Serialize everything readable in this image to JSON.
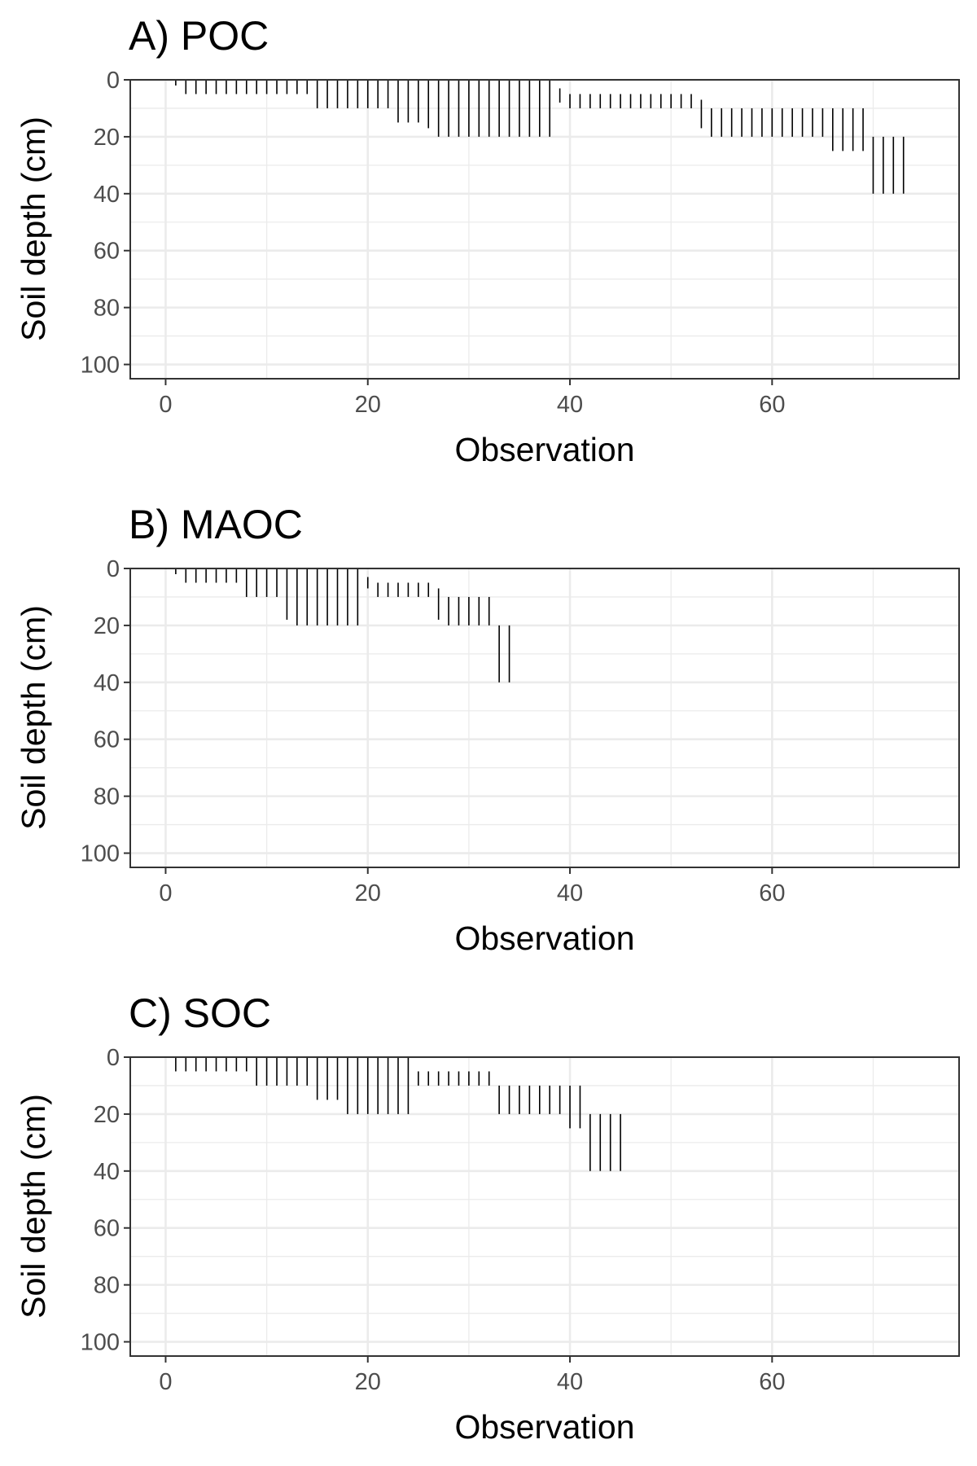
{
  "figure": {
    "panels": [
      {
        "title": "A) POC"
      },
      {
        "title": "B) MAOC"
      },
      {
        "title": "C) SOC"
      }
    ]
  },
  "chart_data": [
    {
      "type": "range-bar",
      "title": "A) POC",
      "xlabel": "Observation",
      "ylabel": "Soil depth (cm)",
      "xlim": [
        -3.5,
        78.5
      ],
      "ylim": [
        0,
        105
      ],
      "y_reversed": true,
      "xticks": [
        0,
        20,
        40,
        60
      ],
      "yticks": [
        0,
        20,
        40,
        60,
        80,
        100
      ],
      "grid": true,
      "observations": [
        {
          "x": 1,
          "top": 0,
          "bottom": 2
        },
        {
          "x": 2,
          "top": 0,
          "bottom": 5
        },
        {
          "x": 3,
          "top": 0,
          "bottom": 5
        },
        {
          "x": 4,
          "top": 0,
          "bottom": 5
        },
        {
          "x": 5,
          "top": 0,
          "bottom": 5
        },
        {
          "x": 6,
          "top": 0,
          "bottom": 5
        },
        {
          "x": 7,
          "top": 0,
          "bottom": 5
        },
        {
          "x": 8,
          "top": 0,
          "bottom": 5
        },
        {
          "x": 9,
          "top": 0,
          "bottom": 5
        },
        {
          "x": 10,
          "top": 0,
          "bottom": 5
        },
        {
          "x": 11,
          "top": 0,
          "bottom": 5
        },
        {
          "x": 12,
          "top": 0,
          "bottom": 5
        },
        {
          "x": 13,
          "top": 0,
          "bottom": 5
        },
        {
          "x": 14,
          "top": 0,
          "bottom": 5
        },
        {
          "x": 15,
          "top": 0,
          "bottom": 10
        },
        {
          "x": 16,
          "top": 0,
          "bottom": 10
        },
        {
          "x": 17,
          "top": 0,
          "bottom": 10
        },
        {
          "x": 18,
          "top": 0,
          "bottom": 10
        },
        {
          "x": 19,
          "top": 0,
          "bottom": 10
        },
        {
          "x": 20,
          "top": 0,
          "bottom": 10
        },
        {
          "x": 21,
          "top": 0,
          "bottom": 10
        },
        {
          "x": 22,
          "top": 0,
          "bottom": 10
        },
        {
          "x": 23,
          "top": 0,
          "bottom": 15
        },
        {
          "x": 24,
          "top": 0,
          "bottom": 15
        },
        {
          "x": 25,
          "top": 0,
          "bottom": 15
        },
        {
          "x": 26,
          "top": 0,
          "bottom": 17
        },
        {
          "x": 27,
          "top": 0,
          "bottom": 20
        },
        {
          "x": 28,
          "top": 0,
          "bottom": 20
        },
        {
          "x": 29,
          "top": 0,
          "bottom": 20
        },
        {
          "x": 30,
          "top": 0,
          "bottom": 20
        },
        {
          "x": 31,
          "top": 0,
          "bottom": 20
        },
        {
          "x": 32,
          "top": 0,
          "bottom": 20
        },
        {
          "x": 33,
          "top": 0,
          "bottom": 20
        },
        {
          "x": 34,
          "top": 0,
          "bottom": 20
        },
        {
          "x": 35,
          "top": 0,
          "bottom": 20
        },
        {
          "x": 36,
          "top": 0,
          "bottom": 20
        },
        {
          "x": 37,
          "top": 0,
          "bottom": 20
        },
        {
          "x": 38,
          "top": 0,
          "bottom": 20
        },
        {
          "x": 39,
          "top": 3,
          "bottom": 8
        },
        {
          "x": 40,
          "top": 5,
          "bottom": 10
        },
        {
          "x": 41,
          "top": 5,
          "bottom": 10
        },
        {
          "x": 42,
          "top": 5,
          "bottom": 10
        },
        {
          "x": 43,
          "top": 5,
          "bottom": 10
        },
        {
          "x": 44,
          "top": 5,
          "bottom": 10
        },
        {
          "x": 45,
          "top": 5,
          "bottom": 10
        },
        {
          "x": 46,
          "top": 5,
          "bottom": 10
        },
        {
          "x": 47,
          "top": 5,
          "bottom": 10
        },
        {
          "x": 48,
          "top": 5,
          "bottom": 10
        },
        {
          "x": 49,
          "top": 5,
          "bottom": 10
        },
        {
          "x": 50,
          "top": 5,
          "bottom": 10
        },
        {
          "x": 51,
          "top": 5,
          "bottom": 10
        },
        {
          "x": 52,
          "top": 5,
          "bottom": 10
        },
        {
          "x": 53,
          "top": 7,
          "bottom": 17
        },
        {
          "x": 54,
          "top": 10,
          "bottom": 20
        },
        {
          "x": 55,
          "top": 10,
          "bottom": 20
        },
        {
          "x": 56,
          "top": 10,
          "bottom": 20
        },
        {
          "x": 57,
          "top": 10,
          "bottom": 20
        },
        {
          "x": 58,
          "top": 10,
          "bottom": 20
        },
        {
          "x": 59,
          "top": 10,
          "bottom": 20
        },
        {
          "x": 60,
          "top": 10,
          "bottom": 20
        },
        {
          "x": 61,
          "top": 10,
          "bottom": 20
        },
        {
          "x": 62,
          "top": 10,
          "bottom": 20
        },
        {
          "x": 63,
          "top": 10,
          "bottom": 20
        },
        {
          "x": 64,
          "top": 10,
          "bottom": 20
        },
        {
          "x": 65,
          "top": 10,
          "bottom": 20
        },
        {
          "x": 66,
          "top": 10,
          "bottom": 25
        },
        {
          "x": 67,
          "top": 10,
          "bottom": 25
        },
        {
          "x": 68,
          "top": 10,
          "bottom": 25
        },
        {
          "x": 69,
          "top": 10,
          "bottom": 25
        },
        {
          "x": 70,
          "top": 20,
          "bottom": 40
        },
        {
          "x": 71,
          "top": 20,
          "bottom": 40
        },
        {
          "x": 72,
          "top": 20,
          "bottom": 40
        },
        {
          "x": 73,
          "top": 20,
          "bottom": 40
        }
      ]
    },
    {
      "type": "range-bar",
      "title": "B) MAOC",
      "xlabel": "Observation",
      "ylabel": "Soil depth (cm)",
      "xlim": [
        -3.5,
        78.5
      ],
      "ylim": [
        0,
        105
      ],
      "y_reversed": true,
      "xticks": [
        0,
        20,
        40,
        60
      ],
      "yticks": [
        0,
        20,
        40,
        60,
        80,
        100
      ],
      "grid": true,
      "observations": [
        {
          "x": 1,
          "top": 0,
          "bottom": 2
        },
        {
          "x": 2,
          "top": 0,
          "bottom": 5
        },
        {
          "x": 3,
          "top": 0,
          "bottom": 5
        },
        {
          "x": 4,
          "top": 0,
          "bottom": 5
        },
        {
          "x": 5,
          "top": 0,
          "bottom": 5
        },
        {
          "x": 6,
          "top": 0,
          "bottom": 5
        },
        {
          "x": 7,
          "top": 0,
          "bottom": 5
        },
        {
          "x": 8,
          "top": 0,
          "bottom": 10
        },
        {
          "x": 9,
          "top": 0,
          "bottom": 10
        },
        {
          "x": 10,
          "top": 0,
          "bottom": 10
        },
        {
          "x": 11,
          "top": 0,
          "bottom": 10
        },
        {
          "x": 12,
          "top": 0,
          "bottom": 18
        },
        {
          "x": 13,
          "top": 0,
          "bottom": 20
        },
        {
          "x": 14,
          "top": 0,
          "bottom": 20
        },
        {
          "x": 15,
          "top": 0,
          "bottom": 20
        },
        {
          "x": 16,
          "top": 0,
          "bottom": 20
        },
        {
          "x": 17,
          "top": 0,
          "bottom": 20
        },
        {
          "x": 18,
          "top": 0,
          "bottom": 20
        },
        {
          "x": 19,
          "top": 0,
          "bottom": 20
        },
        {
          "x": 20,
          "top": 3,
          "bottom": 7
        },
        {
          "x": 21,
          "top": 5,
          "bottom": 10
        },
        {
          "x": 22,
          "top": 5,
          "bottom": 10
        },
        {
          "x": 23,
          "top": 5,
          "bottom": 10
        },
        {
          "x": 24,
          "top": 5,
          "bottom": 10
        },
        {
          "x": 25,
          "top": 5,
          "bottom": 10
        },
        {
          "x": 26,
          "top": 5,
          "bottom": 10
        },
        {
          "x": 27,
          "top": 7,
          "bottom": 18
        },
        {
          "x": 28,
          "top": 10,
          "bottom": 20
        },
        {
          "x": 29,
          "top": 10,
          "bottom": 20
        },
        {
          "x": 30,
          "top": 10,
          "bottom": 20
        },
        {
          "x": 31,
          "top": 10,
          "bottom": 20
        },
        {
          "x": 32,
          "top": 10,
          "bottom": 20
        },
        {
          "x": 33,
          "top": 20,
          "bottom": 40
        },
        {
          "x": 34,
          "top": 20,
          "bottom": 40
        }
      ]
    },
    {
      "type": "range-bar",
      "title": "C) SOC",
      "xlabel": "Observation",
      "ylabel": "Soil depth (cm)",
      "xlim": [
        -3.5,
        78.5
      ],
      "ylim": [
        0,
        105
      ],
      "y_reversed": true,
      "xticks": [
        0,
        20,
        40,
        60
      ],
      "yticks": [
        0,
        20,
        40,
        60,
        80,
        100
      ],
      "grid": true,
      "observations": [
        {
          "x": 1,
          "top": 0,
          "bottom": 5
        },
        {
          "x": 2,
          "top": 0,
          "bottom": 5
        },
        {
          "x": 3,
          "top": 0,
          "bottom": 5
        },
        {
          "x": 4,
          "top": 0,
          "bottom": 5
        },
        {
          "x": 5,
          "top": 0,
          "bottom": 5
        },
        {
          "x": 6,
          "top": 0,
          "bottom": 5
        },
        {
          "x": 7,
          "top": 0,
          "bottom": 5
        },
        {
          "x": 8,
          "top": 0,
          "bottom": 5
        },
        {
          "x": 9,
          "top": 0,
          "bottom": 10
        },
        {
          "x": 10,
          "top": 0,
          "bottom": 10
        },
        {
          "x": 11,
          "top": 0,
          "bottom": 10
        },
        {
          "x": 12,
          "top": 0,
          "bottom": 10
        },
        {
          "x": 13,
          "top": 0,
          "bottom": 10
        },
        {
          "x": 14,
          "top": 0,
          "bottom": 10
        },
        {
          "x": 15,
          "top": 0,
          "bottom": 15
        },
        {
          "x": 16,
          "top": 0,
          "bottom": 15
        },
        {
          "x": 17,
          "top": 0,
          "bottom": 15
        },
        {
          "x": 18,
          "top": 0,
          "bottom": 20
        },
        {
          "x": 19,
          "top": 0,
          "bottom": 20
        },
        {
          "x": 20,
          "top": 0,
          "bottom": 20
        },
        {
          "x": 21,
          "top": 0,
          "bottom": 20
        },
        {
          "x": 22,
          "top": 0,
          "bottom": 20
        },
        {
          "x": 23,
          "top": 0,
          "bottom": 20
        },
        {
          "x": 24,
          "top": 0,
          "bottom": 20
        },
        {
          "x": 25,
          "top": 5,
          "bottom": 10
        },
        {
          "x": 26,
          "top": 5,
          "bottom": 10
        },
        {
          "x": 27,
          "top": 5,
          "bottom": 10
        },
        {
          "x": 28,
          "top": 5,
          "bottom": 10
        },
        {
          "x": 29,
          "top": 5,
          "bottom": 10
        },
        {
          "x": 30,
          "top": 5,
          "bottom": 10
        },
        {
          "x": 31,
          "top": 5,
          "bottom": 10
        },
        {
          "x": 32,
          "top": 5,
          "bottom": 10
        },
        {
          "x": 33,
          "top": 10,
          "bottom": 20
        },
        {
          "x": 34,
          "top": 10,
          "bottom": 20
        },
        {
          "x": 35,
          "top": 10,
          "bottom": 20
        },
        {
          "x": 36,
          "top": 10,
          "bottom": 20
        },
        {
          "x": 37,
          "top": 10,
          "bottom": 20
        },
        {
          "x": 38,
          "top": 10,
          "bottom": 20
        },
        {
          "x": 39,
          "top": 10,
          "bottom": 20
        },
        {
          "x": 40,
          "top": 10,
          "bottom": 25
        },
        {
          "x": 41,
          "top": 10,
          "bottom": 25
        },
        {
          "x": 42,
          "top": 20,
          "bottom": 40
        },
        {
          "x": 43,
          "top": 20,
          "bottom": 40
        },
        {
          "x": 44,
          "top": 20,
          "bottom": 40
        },
        {
          "x": 45,
          "top": 20,
          "bottom": 40
        }
      ]
    }
  ]
}
